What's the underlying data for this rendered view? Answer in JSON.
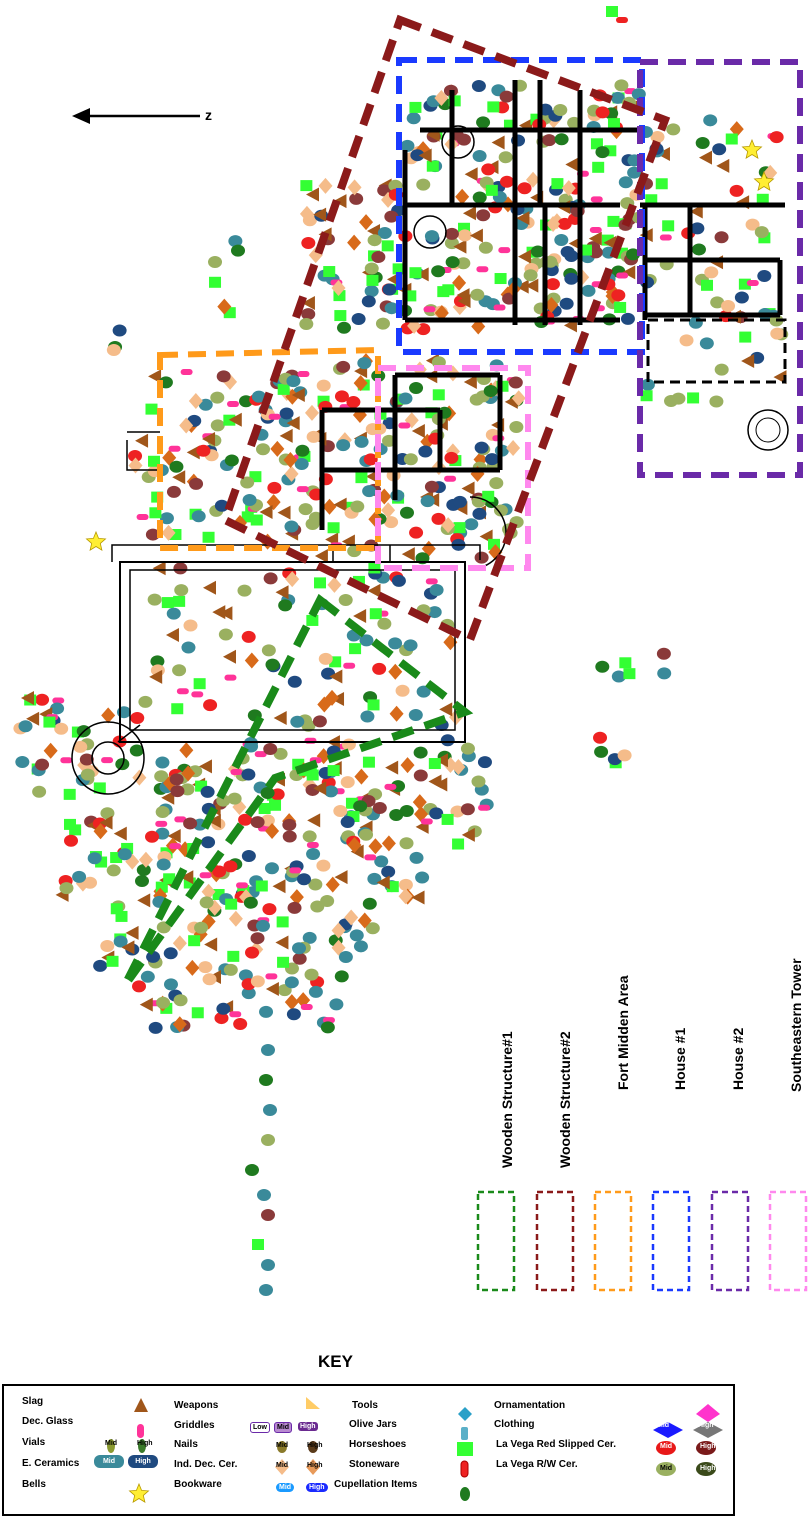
{
  "north_label": "z",
  "legend_areas": [
    {
      "label": "Wooden Structure#1",
      "color": "#1a8a1a"
    },
    {
      "label": "Wooden Structure#2",
      "color": "#8b1a1a"
    },
    {
      "label": "Fort Midden Area",
      "color": "#ff9a1a"
    },
    {
      "label": "House #1",
      "color": "#1a3aff"
    },
    {
      "label": "House #2",
      "color": "#6a2aa8"
    },
    {
      "label": "Southeastern Tower",
      "color": "#ff88ee"
    }
  ],
  "key": {
    "title": "KEY",
    "col1": [
      "Slag",
      "Dec. Glass",
      "Vials",
      "E. Ceramics",
      "Bells"
    ],
    "col2": [
      "Weapons",
      "Griddles",
      "Nails",
      "Ind. Dec. Cer.",
      "Bookware"
    ],
    "col3": [
      "Tools",
      "Olive Jars",
      "Horseshoes",
      "Stoneware",
      "Cupellation Items"
    ],
    "col4": [
      "Ornamentation",
      "Clothing",
      "La Vega Red Slipped Cer.",
      "La Vega R/W Cer."
    ],
    "levels": {
      "low": "Low",
      "mid": "Mid",
      "high": "High"
    }
  },
  "colors": {
    "slag": "#a0561a",
    "glass": "#ff3399",
    "vials": "#2a8a2a",
    "ceramics": "#3a8a9a",
    "bells": "#ffee33",
    "griddles": "#7a3a9a",
    "nails": "#8a3a3a",
    "ind_ceramics": "#f5bc8a",
    "bookware": "#1a6aff",
    "tools": "#ffcc66",
    "olive": "#40a0c0",
    "horseshoes": "#33ff33",
    "stoneware": "#d86a1a",
    "cupellation": "#1f7a1f",
    "ornament": "#2aa0c8",
    "clothing": "#5bb0c8",
    "red_slipped": "#ee2222",
    "rw": "#9ab060",
    "navy": "#1f4a80"
  }
}
